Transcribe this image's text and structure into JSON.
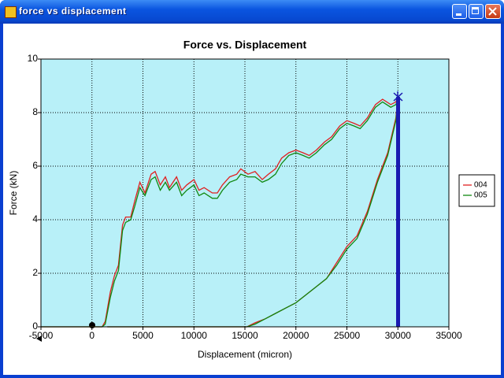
{
  "window": {
    "title": "force vs displacement"
  },
  "chart_data": {
    "type": "line",
    "title": "Force vs. Displacement",
    "xlabel": "Displacement (micron)",
    "ylabel": "Force (kN)",
    "xlim": [
      -5000,
      35000
    ],
    "xticks": [
      -5000,
      0,
      5000,
      10000,
      15000,
      20000,
      25000,
      30000,
      35000
    ],
    "ylim": [
      0,
      10
    ],
    "yticks": [
      0,
      2,
      4,
      6,
      8,
      10
    ],
    "grid": true,
    "legend": "right",
    "series": [
      {
        "name": "004",
        "color": "#e02020",
        "x": [
          -5000,
          1000,
          1300,
          1800,
          2200,
          2600,
          3000,
          3300,
          3800,
          4200,
          4700,
          5200,
          5800,
          6200,
          6700,
          7200,
          7600,
          8300,
          8800,
          9300,
          10000,
          10500,
          11000,
          11800,
          12300,
          12800,
          13500,
          14200,
          14600,
          15300,
          16000,
          16700,
          17300,
          18000,
          18600,
          19300,
          20000,
          20700,
          21300,
          22000,
          22800,
          23500,
          24300,
          25000,
          25700,
          26300,
          27000,
          27800,
          28500,
          29300,
          29800,
          30000,
          29800,
          29000,
          28000,
          27000,
          26000,
          25000,
          24000,
          23000,
          22000,
          21000,
          20000,
          19000,
          18000,
          17000,
          16000,
          15200,
          10000,
          5000,
          1500
        ],
        "values": [
          0,
          0,
          0.2,
          1.3,
          1.9,
          2.3,
          3.8,
          4.1,
          4.1,
          4.7,
          5.4,
          5.0,
          5.7,
          5.8,
          5.3,
          5.6,
          5.2,
          5.6,
          5.1,
          5.3,
          5.5,
          5.1,
          5.2,
          5.0,
          5.0,
          5.3,
          5.6,
          5.7,
          5.9,
          5.7,
          5.8,
          5.5,
          5.7,
          5.9,
          6.3,
          6.5,
          6.6,
          6.5,
          6.4,
          6.6,
          6.9,
          7.1,
          7.5,
          7.7,
          7.6,
          7.5,
          7.8,
          8.3,
          8.5,
          8.3,
          8.4,
          8.6,
          7.8,
          6.5,
          5.5,
          4.3,
          3.4,
          3.0,
          2.4,
          1.8,
          1.5,
          1.2,
          0.9,
          0.7,
          0.5,
          0.3,
          0.15,
          0,
          0,
          0,
          0
        ]
      },
      {
        "name": "005",
        "color": "#108810",
        "x": [
          -5000,
          1000,
          1300,
          1800,
          2200,
          2600,
          3000,
          3300,
          3800,
          4200,
          4700,
          5200,
          5800,
          6200,
          6700,
          7200,
          7600,
          8300,
          8800,
          9300,
          10000,
          10500,
          11000,
          11800,
          12300,
          12800,
          13500,
          14200,
          14600,
          15300,
          16000,
          16700,
          17300,
          18000,
          18600,
          19300,
          20000,
          20700,
          21300,
          22000,
          22800,
          23500,
          24300,
          25000,
          25700,
          26300,
          27000,
          27800,
          28500,
          29300,
          29800,
          30000,
          29800,
          29000,
          28000,
          27000,
          26000,
          25000,
          24000,
          23000,
          22000,
          21000,
          20000,
          19000,
          18000,
          17000,
          16000,
          15200,
          10000,
          5000,
          1500
        ],
        "values": [
          0,
          0,
          0.1,
          1.1,
          1.7,
          2.1,
          3.6,
          3.9,
          4.0,
          4.5,
          5.2,
          4.9,
          5.5,
          5.6,
          5.1,
          5.4,
          5.1,
          5.4,
          4.9,
          5.1,
          5.3,
          4.9,
          5.0,
          4.8,
          4.8,
          5.1,
          5.4,
          5.5,
          5.7,
          5.6,
          5.6,
          5.4,
          5.5,
          5.7,
          6.1,
          6.4,
          6.5,
          6.4,
          6.3,
          6.5,
          6.8,
          7.0,
          7.4,
          7.6,
          7.5,
          7.4,
          7.7,
          8.2,
          8.4,
          8.2,
          8.3,
          8.5,
          7.7,
          6.4,
          5.4,
          4.2,
          3.3,
          2.9,
          2.3,
          1.8,
          1.5,
          1.2,
          0.9,
          0.7,
          0.5,
          0.3,
          0.1,
          0,
          0,
          0,
          0
        ]
      }
    ]
  }
}
